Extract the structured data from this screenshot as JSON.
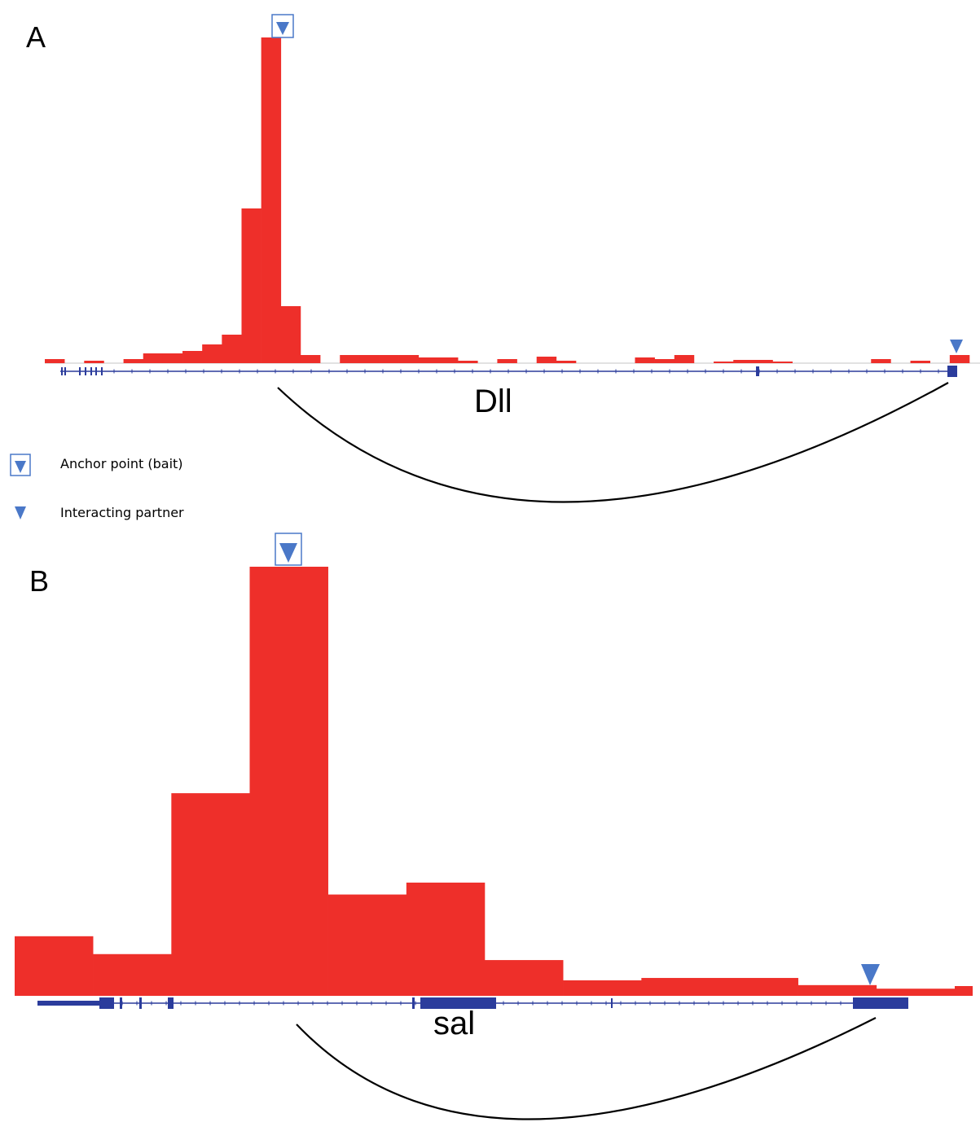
{
  "colors": {
    "signal": "#ee2f2a",
    "gene": "#2b3c9c",
    "marker": "#4a78c8",
    "arc": "#000000",
    "baseline": "#d9d9d9"
  },
  "legend": {
    "anchor_label": "Anchor point (bait)",
    "anchor_icon": "boxed-down-triangle-icon",
    "partner_label": "Interacting partner",
    "partner_icon": "down-triangle-icon"
  },
  "chart_data": [
    {
      "type": "bar",
      "panel": "A",
      "gene": "Dll",
      "bin_values": [
        0.5,
        0,
        0.3,
        0,
        0.5,
        1.2,
        1.2,
        1.5,
        2.3,
        3.5,
        19,
        40,
        7,
        1.0,
        0,
        1.0,
        1.0,
        1.0,
        1.0,
        0.7,
        0.7,
        0.3,
        0,
        0.5,
        0,
        0.8,
        0.3,
        0,
        0,
        0,
        0.7,
        0.5,
        1.0,
        0,
        0.2,
        0.4,
        0.4,
        0.2,
        0,
        0,
        0,
        0,
        0.5,
        0,
        0.3,
        0,
        1.0
      ],
      "ylim": [
        0,
        40
      ],
      "anchor_bin": 11,
      "partner_bin": 46
    },
    {
      "type": "bar",
      "panel": "B",
      "gene": "sal",
      "bin_values": [
        5,
        3.5,
        17,
        36,
        8.5,
        9.5,
        3,
        1.3,
        1.5,
        1.5,
        0.9,
        0.6
      ],
      "ylim": [
        0,
        36
      ],
      "anchor_bin": 3,
      "partner_bin": 11
    }
  ]
}
